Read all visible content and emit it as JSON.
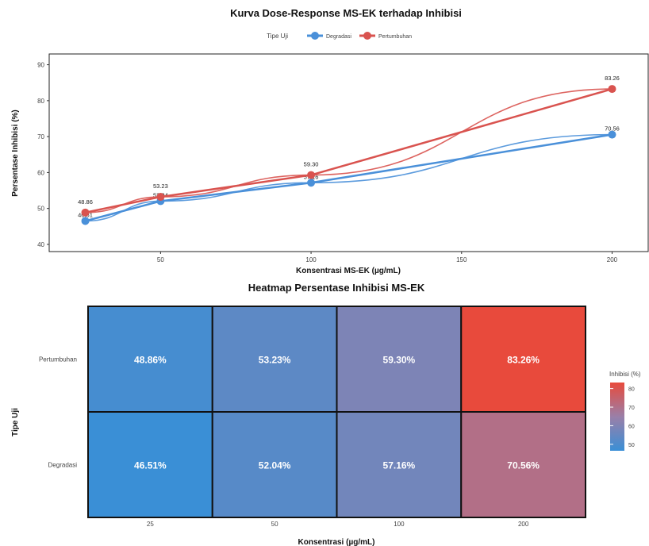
{
  "colors": {
    "degradasi": "#4a90d9",
    "pertumbuhan": "#d9534f",
    "heat_low": "#3a8fd6",
    "heat_mid": "#9a7fa8",
    "heat_high": "#e84a3c"
  },
  "chart_data": [
    {
      "type": "line",
      "title": "Kurva Dose-Response MS-EK terhadap Inhibisi",
      "xlabel": "Konsentrasi MS-EK (µg/mL)",
      "ylabel": "Persentase Inhibisi (%)",
      "legend_title": "Tipe Uji",
      "legend_placement": "top",
      "x": [
        25,
        50,
        100,
        200
      ],
      "xlim": [
        13,
        212
      ],
      "ylim": [
        38,
        93
      ],
      "x_ticks": [
        50,
        100,
        150,
        200
      ],
      "y_ticks": [
        40,
        50,
        60,
        70,
        80,
        90
      ],
      "series": [
        {
          "name": "Degradasi",
          "values": [
            46.51,
            52.04,
            57.16,
            70.56
          ],
          "labels": [
            "46.51",
            "52.04",
            "57.16",
            "70.56"
          ]
        },
        {
          "name": "Pertumbuhan",
          "values": [
            48.86,
            53.23,
            59.3,
            83.26
          ],
          "labels": [
            "48.86",
            "53.23",
            "59.30",
            "83.26"
          ]
        }
      ],
      "grid": false
    },
    {
      "type": "heatmap",
      "title": "Heatmap Persentase Inhibisi MS-EK",
      "xlabel": "Konsentrasi (µg/mL)",
      "ylabel": "Tipe Uji",
      "categories": [
        "25",
        "50",
        "100",
        "200"
      ],
      "rows": [
        "Pertumbuhan",
        "Degradasi"
      ],
      "values": [
        [
          48.86,
          53.23,
          59.3,
          83.26
        ],
        [
          46.51,
          52.04,
          57.16,
          70.56
        ]
      ],
      "cell_labels": [
        [
          "48.86%",
          "53.23%",
          "59.30%",
          "83.26%"
        ],
        [
          "46.51%",
          "52.04%",
          "57.16%",
          "70.56%"
        ]
      ],
      "legend_title": "Inhibisi (%)",
      "legend_ticks": [
        50,
        60,
        70,
        80
      ],
      "legend_range": [
        46.51,
        83.26
      ],
      "legend_placement": "right"
    }
  ]
}
